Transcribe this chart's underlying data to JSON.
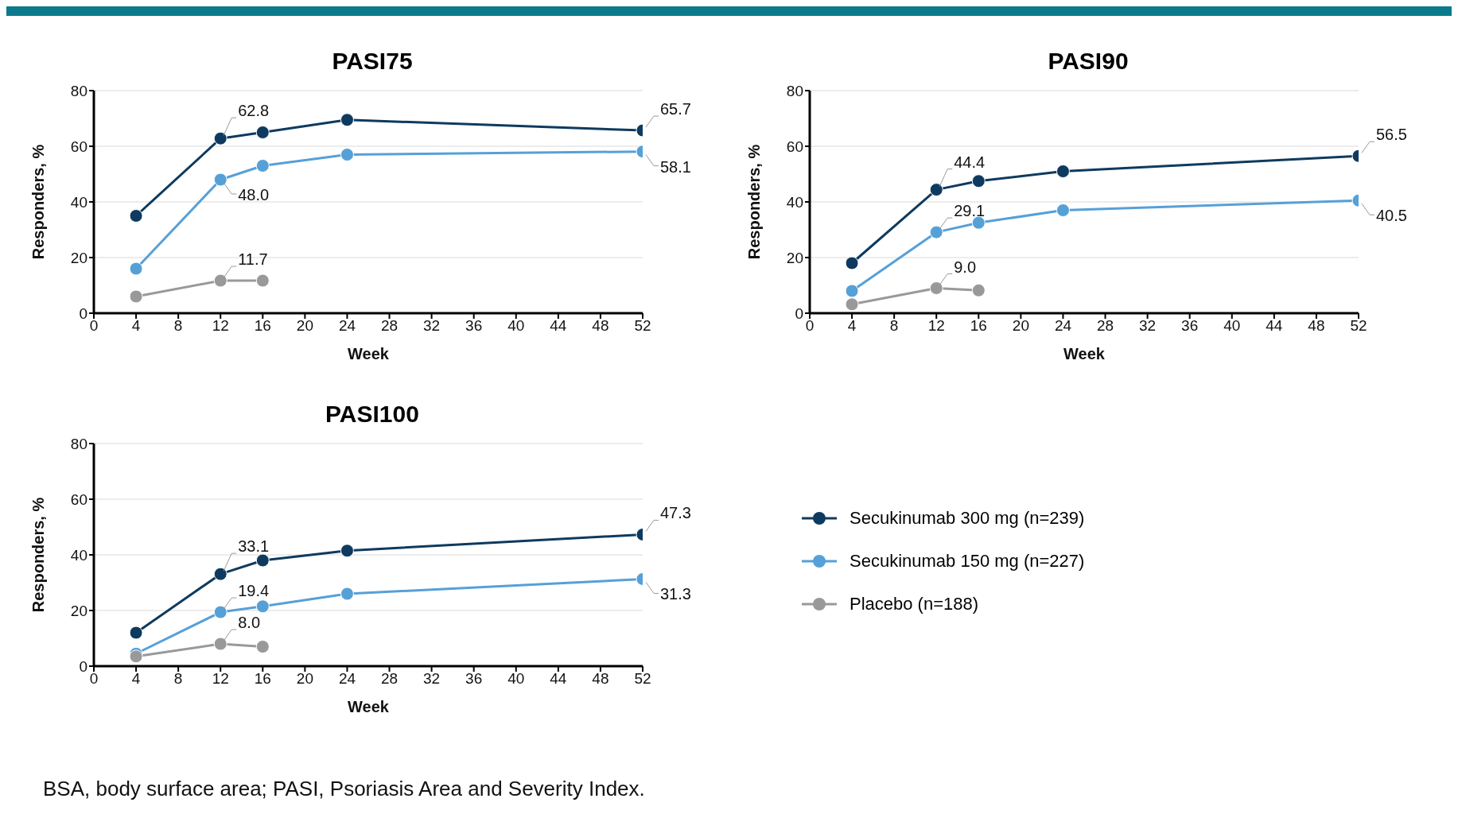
{
  "chart_data": [
    {
      "type": "line",
      "title": "PASI75",
      "xlabel": "Week",
      "ylabel": "Responders, %",
      "xlim": [
        0,
        52
      ],
      "xticks": [
        0,
        4,
        8,
        12,
        16,
        20,
        24,
        28,
        32,
        36,
        40,
        44,
        48,
        52
      ],
      "ylim": [
        0,
        80
      ],
      "yticks": [
        0,
        20,
        40,
        60,
        80
      ],
      "grid": "y",
      "marker": "circle",
      "line_style": "solid",
      "series": [
        {
          "color": "#0e3a5f",
          "x": [
            4,
            12,
            16,
            24,
            52
          ],
          "values": [
            35,
            62.8,
            65,
            69.5,
            65.7
          ],
          "value_labels": [
            null,
            "62.8",
            null,
            null,
            "65.7"
          ]
        },
        {
          "color": "#56a0d8",
          "x": [
            4,
            12,
            16,
            24,
            52
          ],
          "values": [
            16,
            48.0,
            53,
            57,
            58.1
          ],
          "value_labels": [
            null,
            "48.0",
            null,
            null,
            "58.1"
          ]
        },
        {
          "color": "#999999",
          "x": [
            4,
            12,
            16
          ],
          "values": [
            6,
            11.7,
            11.7
          ],
          "value_labels": [
            null,
            "11.7",
            null
          ]
        }
      ]
    },
    {
      "type": "line",
      "title": "PASI90",
      "xlabel": "Week",
      "ylabel": "Responders, %",
      "xlim": [
        0,
        52
      ],
      "xticks": [
        0,
        4,
        8,
        12,
        16,
        20,
        24,
        28,
        32,
        36,
        40,
        44,
        48,
        52
      ],
      "ylim": [
        0,
        80
      ],
      "yticks": [
        0,
        20,
        40,
        60,
        80
      ],
      "grid": "y",
      "marker": "circle",
      "line_style": "solid",
      "series": [
        {
          "color": "#0e3a5f",
          "x": [
            4,
            12,
            16,
            24,
            52
          ],
          "values": [
            18,
            44.4,
            47.5,
            51,
            56.5
          ],
          "value_labels": [
            null,
            "44.4",
            null,
            null,
            "56.5"
          ]
        },
        {
          "color": "#56a0d8",
          "x": [
            4,
            12,
            16,
            24,
            52
          ],
          "values": [
            8,
            29.1,
            32.5,
            37,
            40.5
          ],
          "value_labels": [
            null,
            "29.1",
            null,
            null,
            "40.5"
          ]
        },
        {
          "color": "#999999",
          "x": [
            4,
            12,
            16
          ],
          "values": [
            3.2,
            9.0,
            8.2
          ],
          "value_labels": [
            null,
            "9.0",
            null
          ]
        }
      ]
    },
    {
      "type": "line",
      "title": "PASI100",
      "xlabel": "Week",
      "ylabel": "Responders, %",
      "xlim": [
        0,
        52
      ],
      "xticks": [
        0,
        4,
        8,
        12,
        16,
        20,
        24,
        28,
        32,
        36,
        40,
        44,
        48,
        52
      ],
      "ylim": [
        0,
        80
      ],
      "yticks": [
        0,
        20,
        40,
        60,
        80
      ],
      "grid": "y",
      "marker": "circle",
      "line_style": "solid",
      "legend": "right",
      "annotations": [
        "BSA, body surface area; PASI, Psoriasis Area and Severity Index."
      ],
      "series": [
        {
          "name": "Secukinumab 300 mg (n=239)",
          "color": "#0e3a5f",
          "x": [
            4,
            12,
            16,
            24,
            52
          ],
          "values": [
            12,
            33.1,
            38,
            41.5,
            47.3
          ],
          "value_labels": [
            null,
            "33.1",
            null,
            null,
            "47.3"
          ]
        },
        {
          "name": "Secukinumab 150 mg (n=227)",
          "color": "#56a0d8",
          "x": [
            4,
            12,
            16,
            24,
            52
          ],
          "values": [
            4.5,
            19.4,
            21.5,
            26,
            31.3
          ],
          "value_labels": [
            null,
            "19.4",
            null,
            null,
            "31.3"
          ]
        },
        {
          "name": "Placebo (n=188)",
          "color": "#999999",
          "x": [
            4,
            12,
            16
          ],
          "values": [
            3.5,
            8.0,
            7
          ],
          "value_labels": [
            null,
            "8.0",
            null
          ]
        }
      ]
    }
  ]
}
